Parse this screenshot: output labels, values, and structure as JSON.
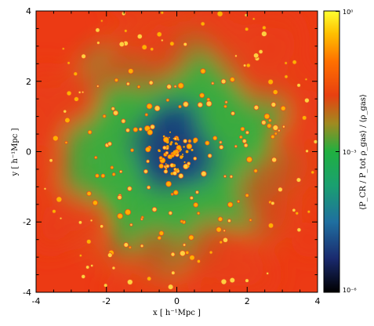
{
  "chart_data": {
    "type": "heatmap",
    "title": "",
    "xlabel": "x [ h⁻¹Mpc ]",
    "ylabel": "y [ h⁻¹Mpc ]",
    "xlim": [
      -4,
      4
    ],
    "ylim": [
      -4,
      4
    ],
    "x_ticks": [
      "-4",
      "-2",
      "0",
      "2",
      "4"
    ],
    "y_ticks": [
      "-4",
      "-2",
      "0",
      "2",
      "4"
    ],
    "colorbar": {
      "label": "⟨PₙB / Pₜₜ ρₑₐₛ⟩ / ⟨ρₑₐₛ⟩",
      "label_text": "⟨P_CR / P_tot ρ_gas⟩ / ⟨ρ_gas⟩",
      "scale": "log",
      "range": [
        1e-06,
        1.0
      ],
      "ticks": [
        "10⁻⁶",
        "10⁻³",
        "10⁰"
      ],
      "colormap": [
        "#000000",
        "#1a2a6e",
        "#1f6fa0",
        "#1aa070",
        "#20b040",
        "#c08020",
        "#e84010",
        "#ff8000",
        "#ffd000",
        "#ffff40"
      ]
    },
    "grid": false,
    "colors": {
      "background_field": "#e8401a",
      "filament_green": "#3caa3c",
      "core_blue": "#1e5a8c",
      "knots_orange": "#ffb000"
    }
  }
}
